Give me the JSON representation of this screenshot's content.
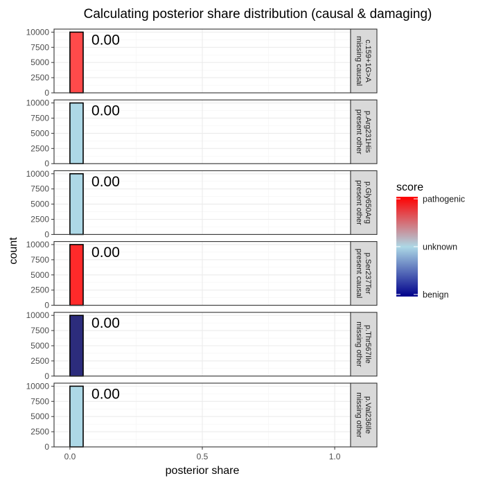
{
  "chart_data": {
    "type": "bar",
    "title": "Calculating posterior share distribution (causal & damaging)",
    "xlabel": "posterior share",
    "ylabel": "count",
    "xlim": [
      -0.06,
      1.06
    ],
    "ylim": [
      0,
      10500
    ],
    "x_ticks": [
      0.0,
      0.5,
      1.0
    ],
    "x_tick_labels": [
      "0.0",
      "0.5",
      "1.0"
    ],
    "y_ticks": [
      0,
      2500,
      5000,
      7500,
      10000
    ],
    "y_tick_labels": [
      "0",
      "2500",
      "5000",
      "7500",
      "10000"
    ],
    "bin_width": 0.05,
    "grid": true,
    "panels": [
      {
        "strip": [
          "c.159+1G>A",
          "missing causal"
        ],
        "bin_start": 0.0,
        "count": 10000,
        "label": "0.00",
        "color": "#ff4a4a"
      },
      {
        "strip": [
          "p.Arg231His",
          "present other"
        ],
        "bin_start": 0.0,
        "count": 10000,
        "label": "0.00",
        "color": "#add8e6"
      },
      {
        "strip": [
          "p.Gly650Arg",
          "present other"
        ],
        "bin_start": 0.0,
        "count": 10000,
        "label": "0.00",
        "color": "#add8e6"
      },
      {
        "strip": [
          "p.Ser237Ter",
          "present causal"
        ],
        "bin_start": 0.0,
        "count": 10000,
        "label": "0.00",
        "color": "#ff2a2a"
      },
      {
        "strip": [
          "p.Thr567Ile",
          "missing other"
        ],
        "bin_start": 0.0,
        "count": 10000,
        "label": "0.00",
        "color": "#2c2c7c"
      },
      {
        "strip": [
          "p.Val236Ile",
          "missing other"
        ],
        "bin_start": 0.0,
        "count": 10000,
        "label": "0.00",
        "color": "#add8e6"
      }
    ],
    "legend": {
      "title": "score",
      "placement": "right",
      "labels": [
        "pathogenic",
        "unknown",
        "benign"
      ],
      "colors": {
        "pathogenic": "#ff0000",
        "unknown": "#add8e6",
        "benign": "#00008b"
      }
    }
  }
}
